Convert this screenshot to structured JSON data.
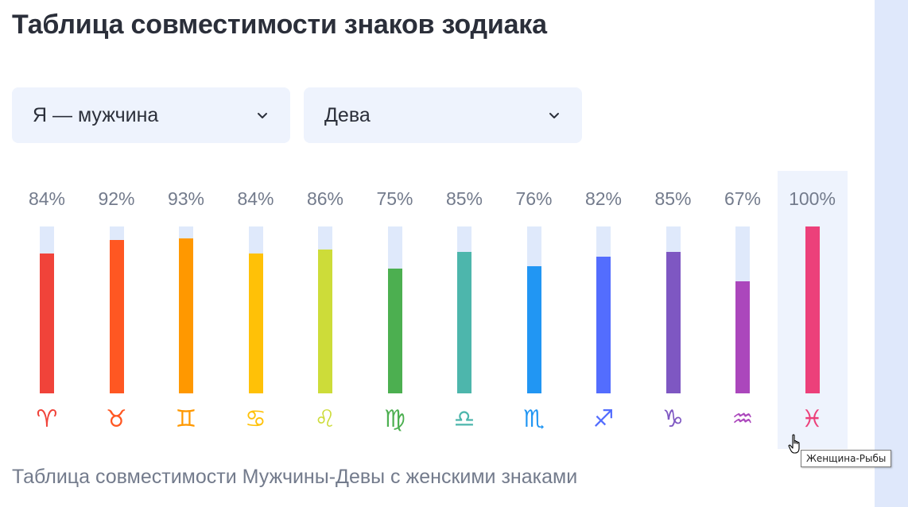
{
  "page": {
    "title": "Таблица совместимости знаков зодиака"
  },
  "filters": {
    "gender": {
      "value": "Я — мужчина"
    },
    "sign": {
      "value": "Дева"
    }
  },
  "chart_data": {
    "type": "bar",
    "ylim": [
      0,
      100
    ],
    "categories": [
      "♈",
      "♉",
      "♊",
      "♋",
      "♌",
      "♍",
      "♎",
      "♏",
      "♐",
      "♑",
      "♒",
      "♓"
    ],
    "values": [
      84,
      92,
      93,
      84,
      86,
      75,
      85,
      76,
      82,
      85,
      67,
      100
    ],
    "labels": [
      "84%",
      "92%",
      "93%",
      "84%",
      "86%",
      "75%",
      "85%",
      "76%",
      "82%",
      "85%",
      "67%",
      "100%"
    ],
    "colors": [
      "#f0433a",
      "#ff5722",
      "#ff9800",
      "#ffc107",
      "#cddc39",
      "#4caf50",
      "#4db6ac",
      "#2196f3",
      "#536dfe",
      "#7e57c2",
      "#ab47bc",
      "#ec407a"
    ],
    "active_index": 11
  },
  "caption": "Таблица совместимости Мужчины-Девы с женскими знаками",
  "tooltip": "Женщина-Рыбы"
}
